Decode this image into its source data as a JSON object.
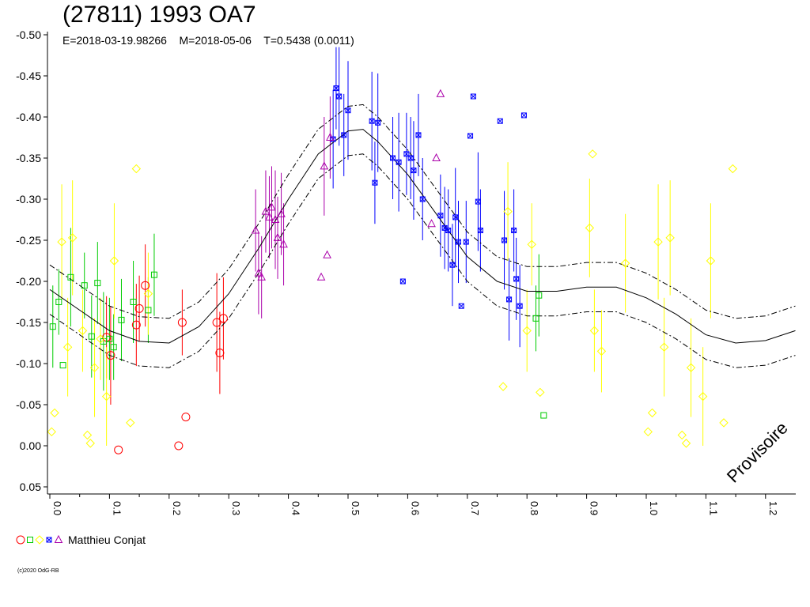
{
  "title": "(27811) 1993 OA7",
  "subtitle": "E=2018-03-19.98266    M=2018-05-06    T=0.5438 (0.0011)",
  "watermark": "Provisoire",
  "legend": {
    "name": "Matthieu Conjat",
    "markers": [
      "circle-red",
      "square-green",
      "diamond-yellow",
      "star-blue",
      "triangle-purple"
    ]
  },
  "copyright": "(c)2020 OdG-RB",
  "chart_data": {
    "type": "scatter",
    "period_h": 0.5438,
    "period_err_h": 0.0011,
    "xlim": [
      0,
      1.25
    ],
    "ylim": [
      0.05,
      -0.5
    ],
    "y_inverted": true,
    "grid": false,
    "x_ticks": [
      "0.0",
      "0.1",
      "0.2",
      "0.3",
      "0.4",
      "0.5",
      "0.6",
      "0.7",
      "0.8",
      "0.9",
      "1.0",
      "1.1",
      "1.2"
    ],
    "x_tick_values": [
      0,
      0.1,
      0.2,
      0.3,
      0.4,
      0.5,
      0.6,
      0.7,
      0.8,
      0.9,
      1.0,
      1.1,
      1.2
    ],
    "y_ticks": [
      "-0.50",
      "-0.45",
      "-0.40",
      "-0.35",
      "-0.30",
      "-0.25",
      "-0.20",
      "-0.15",
      "-0.10",
      "-0.05",
      "0.00",
      "0.05"
    ],
    "y_tick_values": [
      -0.5,
      -0.45,
      -0.4,
      -0.35,
      -0.3,
      -0.25,
      -0.2,
      -0.15,
      -0.1,
      -0.05,
      0.0,
      0.05
    ],
    "fit_curve": [
      [
        0.0,
        -0.19
      ],
      [
        0.05,
        -0.165
      ],
      [
        0.1,
        -0.14
      ],
      [
        0.15,
        -0.127
      ],
      [
        0.2,
        -0.125
      ],
      [
        0.25,
        -0.145
      ],
      [
        0.3,
        -0.185
      ],
      [
        0.35,
        -0.24
      ],
      [
        0.4,
        -0.3
      ],
      [
        0.45,
        -0.355
      ],
      [
        0.5,
        -0.383
      ],
      [
        0.525,
        -0.385
      ],
      [
        0.55,
        -0.37
      ],
      [
        0.6,
        -0.33
      ],
      [
        0.65,
        -0.28
      ],
      [
        0.7,
        -0.23
      ],
      [
        0.75,
        -0.2
      ],
      [
        0.8,
        -0.188
      ],
      [
        0.85,
        -0.188
      ],
      [
        0.9,
        -0.193
      ],
      [
        0.95,
        -0.193
      ],
      [
        1.0,
        -0.18
      ],
      [
        1.05,
        -0.16
      ],
      [
        1.1,
        -0.135
      ],
      [
        1.15,
        -0.125
      ],
      [
        1.2,
        -0.128
      ],
      [
        1.25,
        -0.14
      ]
    ],
    "band_offset": 0.03,
    "series": [
      {
        "name": "red",
        "marker": "circle",
        "color": "#ff0000",
        "points": [
          [
            0.095,
            -0.132,
            0.05
          ],
          [
            0.102,
            -0.11,
            0.06
          ],
          [
            0.115,
            0.005,
            0
          ],
          [
            0.15,
            -0.167,
            0.04
          ],
          [
            0.16,
            -0.195,
            0.05
          ],
          [
            0.145,
            -0.147,
            0.05
          ],
          [
            0.216,
            0.0,
            0
          ],
          [
            0.222,
            -0.15,
            0.04
          ],
          [
            0.228,
            -0.035,
            0
          ],
          [
            0.28,
            -0.15,
            0.06
          ],
          [
            0.285,
            -0.113,
            0.05
          ],
          [
            0.291,
            -0.155,
            0.05
          ]
        ]
      },
      {
        "name": "green",
        "marker": "square",
        "color": "#00cc00",
        "points": [
          [
            0.005,
            -0.145,
            0.05
          ],
          [
            0.015,
            -0.175,
            0.04
          ],
          [
            0.022,
            -0.098,
            0
          ],
          [
            0.035,
            -0.205,
            0.06
          ],
          [
            0.058,
            -0.195,
            0.04
          ],
          [
            0.07,
            -0.133,
            0.05
          ],
          [
            0.08,
            -0.198,
            0.05
          ],
          [
            0.09,
            -0.127,
            0.06
          ],
          [
            0.1,
            -0.13,
            0.05
          ],
          [
            0.107,
            -0.12,
            0.04
          ],
          [
            0.12,
            -0.153,
            0.05
          ],
          [
            0.14,
            -0.175,
            0.05
          ],
          [
            0.165,
            -0.165,
            0.04
          ],
          [
            0.175,
            -0.208,
            0.05
          ],
          [
            0.815,
            -0.155,
            0.04
          ],
          [
            0.82,
            -0.183,
            0.05
          ],
          [
            0.828,
            -0.037,
            0
          ]
        ]
      },
      {
        "name": "yellow",
        "marker": "diamond",
        "color": "#ffff00",
        "points": [
          [
            0.003,
            -0.017,
            0
          ],
          [
            0.008,
            -0.04,
            0
          ],
          [
            0.02,
            -0.248,
            0.07
          ],
          [
            0.03,
            -0.12,
            0.06
          ],
          [
            0.038,
            -0.253,
            0.07
          ],
          [
            0.055,
            -0.14,
            0.05
          ],
          [
            0.063,
            -0.013,
            0
          ],
          [
            0.068,
            -0.003,
            0
          ],
          [
            0.075,
            -0.095,
            0.06
          ],
          [
            0.085,
            -0.13,
            0.05
          ],
          [
            0.095,
            -0.06,
            0.06
          ],
          [
            0.108,
            -0.225,
            0.07
          ],
          [
            0.135,
            -0.028,
            0
          ],
          [
            0.145,
            -0.337,
            0
          ],
          [
            0.165,
            -0.185,
            0.05
          ],
          [
            0.8,
            -0.14,
            0.05
          ],
          [
            0.808,
            -0.245,
            0.05
          ],
          [
            0.822,
            -0.065,
            0
          ],
          [
            0.76,
            -0.072,
            0
          ],
          [
            0.768,
            -0.285,
            0.06
          ],
          [
            0.905,
            -0.265,
            0.06
          ],
          [
            0.91,
            -0.355,
            0
          ],
          [
            0.913,
            -0.14,
            0.05
          ],
          [
            0.925,
            -0.115,
            0.05
          ],
          [
            0.965,
            -0.222,
            0.06
          ],
          [
            1.003,
            -0.017,
            0
          ],
          [
            1.01,
            -0.04,
            0
          ],
          [
            1.02,
            -0.248,
            0.07
          ],
          [
            1.03,
            -0.12,
            0.06
          ],
          [
            1.04,
            -0.253,
            0.07
          ],
          [
            1.06,
            -0.013,
            0
          ],
          [
            1.067,
            -0.003,
            0
          ],
          [
            1.075,
            -0.095,
            0.06
          ],
          [
            1.095,
            -0.06,
            0.06
          ],
          [
            1.108,
            -0.225,
            0.07
          ],
          [
            1.13,
            -0.028,
            0
          ],
          [
            1.145,
            -0.337,
            0
          ]
        ]
      },
      {
        "name": "blue",
        "marker": "star",
        "color": "#0000ff",
        "points": [
          [
            0.475,
            -0.373,
            0.06
          ],
          [
            0.48,
            -0.435,
            0.05
          ],
          [
            0.485,
            -0.425,
            0.06
          ],
          [
            0.493,
            -0.378,
            0.05
          ],
          [
            0.5,
            -0.408,
            0.06
          ],
          [
            0.54,
            -0.395,
            0.06
          ],
          [
            0.545,
            -0.32,
            0.05
          ],
          [
            0.55,
            -0.393,
            0.06
          ],
          [
            0.575,
            -0.35,
            0.05
          ],
          [
            0.585,
            -0.345,
            0.06
          ],
          [
            0.592,
            -0.2,
            0
          ],
          [
            0.598,
            -0.355,
            0.05
          ],
          [
            0.605,
            -0.35,
            0.05
          ],
          [
            0.61,
            -0.335,
            0.06
          ],
          [
            0.618,
            -0.378,
            0.05
          ],
          [
            0.625,
            -0.3,
            0.05
          ],
          [
            0.655,
            -0.28,
            0.05
          ],
          [
            0.662,
            -0.265,
            0.05
          ],
          [
            0.668,
            -0.262,
            0.05
          ],
          [
            0.675,
            -0.22,
            0.05
          ],
          [
            0.68,
            -0.278,
            0.06
          ],
          [
            0.685,
            -0.248,
            0.05
          ],
          [
            0.69,
            -0.17,
            0
          ],
          [
            0.698,
            -0.248,
            0.05
          ],
          [
            0.705,
            -0.377,
            0
          ],
          [
            0.71,
            -0.425,
            0
          ],
          [
            0.718,
            -0.297,
            0.06
          ],
          [
            0.722,
            -0.262,
            0.05
          ],
          [
            0.755,
            -0.395,
            0
          ],
          [
            0.762,
            -0.25,
            0.06
          ],
          [
            0.77,
            -0.178,
            0.05
          ],
          [
            0.778,
            -0.262,
            0.05
          ],
          [
            0.782,
            -0.203,
            0.05
          ],
          [
            0.788,
            -0.17,
            0.05
          ],
          [
            0.795,
            -0.402,
            0
          ]
        ]
      },
      {
        "name": "purple",
        "marker": "triangle",
        "color": "#aa00aa",
        "points": [
          [
            0.345,
            -0.262,
            0.05
          ],
          [
            0.35,
            -0.21,
            0.05
          ],
          [
            0.355,
            -0.205,
            0.05
          ],
          [
            0.362,
            -0.285,
            0.05
          ],
          [
            0.368,
            -0.278,
            0.05
          ],
          [
            0.372,
            -0.29,
            0.05
          ],
          [
            0.378,
            -0.275,
            0.06
          ],
          [
            0.382,
            -0.253,
            0.05
          ],
          [
            0.388,
            -0.282,
            0.05
          ],
          [
            0.392,
            -0.245,
            0.05
          ],
          [
            0.455,
            -0.205,
            0
          ],
          [
            0.46,
            -0.34,
            0.06
          ],
          [
            0.465,
            -0.232,
            0
          ],
          [
            0.47,
            -0.375,
            0.05
          ],
          [
            0.64,
            -0.27,
            0
          ],
          [
            0.648,
            -0.35,
            0
          ],
          [
            0.655,
            -0.428,
            0
          ]
        ]
      }
    ]
  }
}
